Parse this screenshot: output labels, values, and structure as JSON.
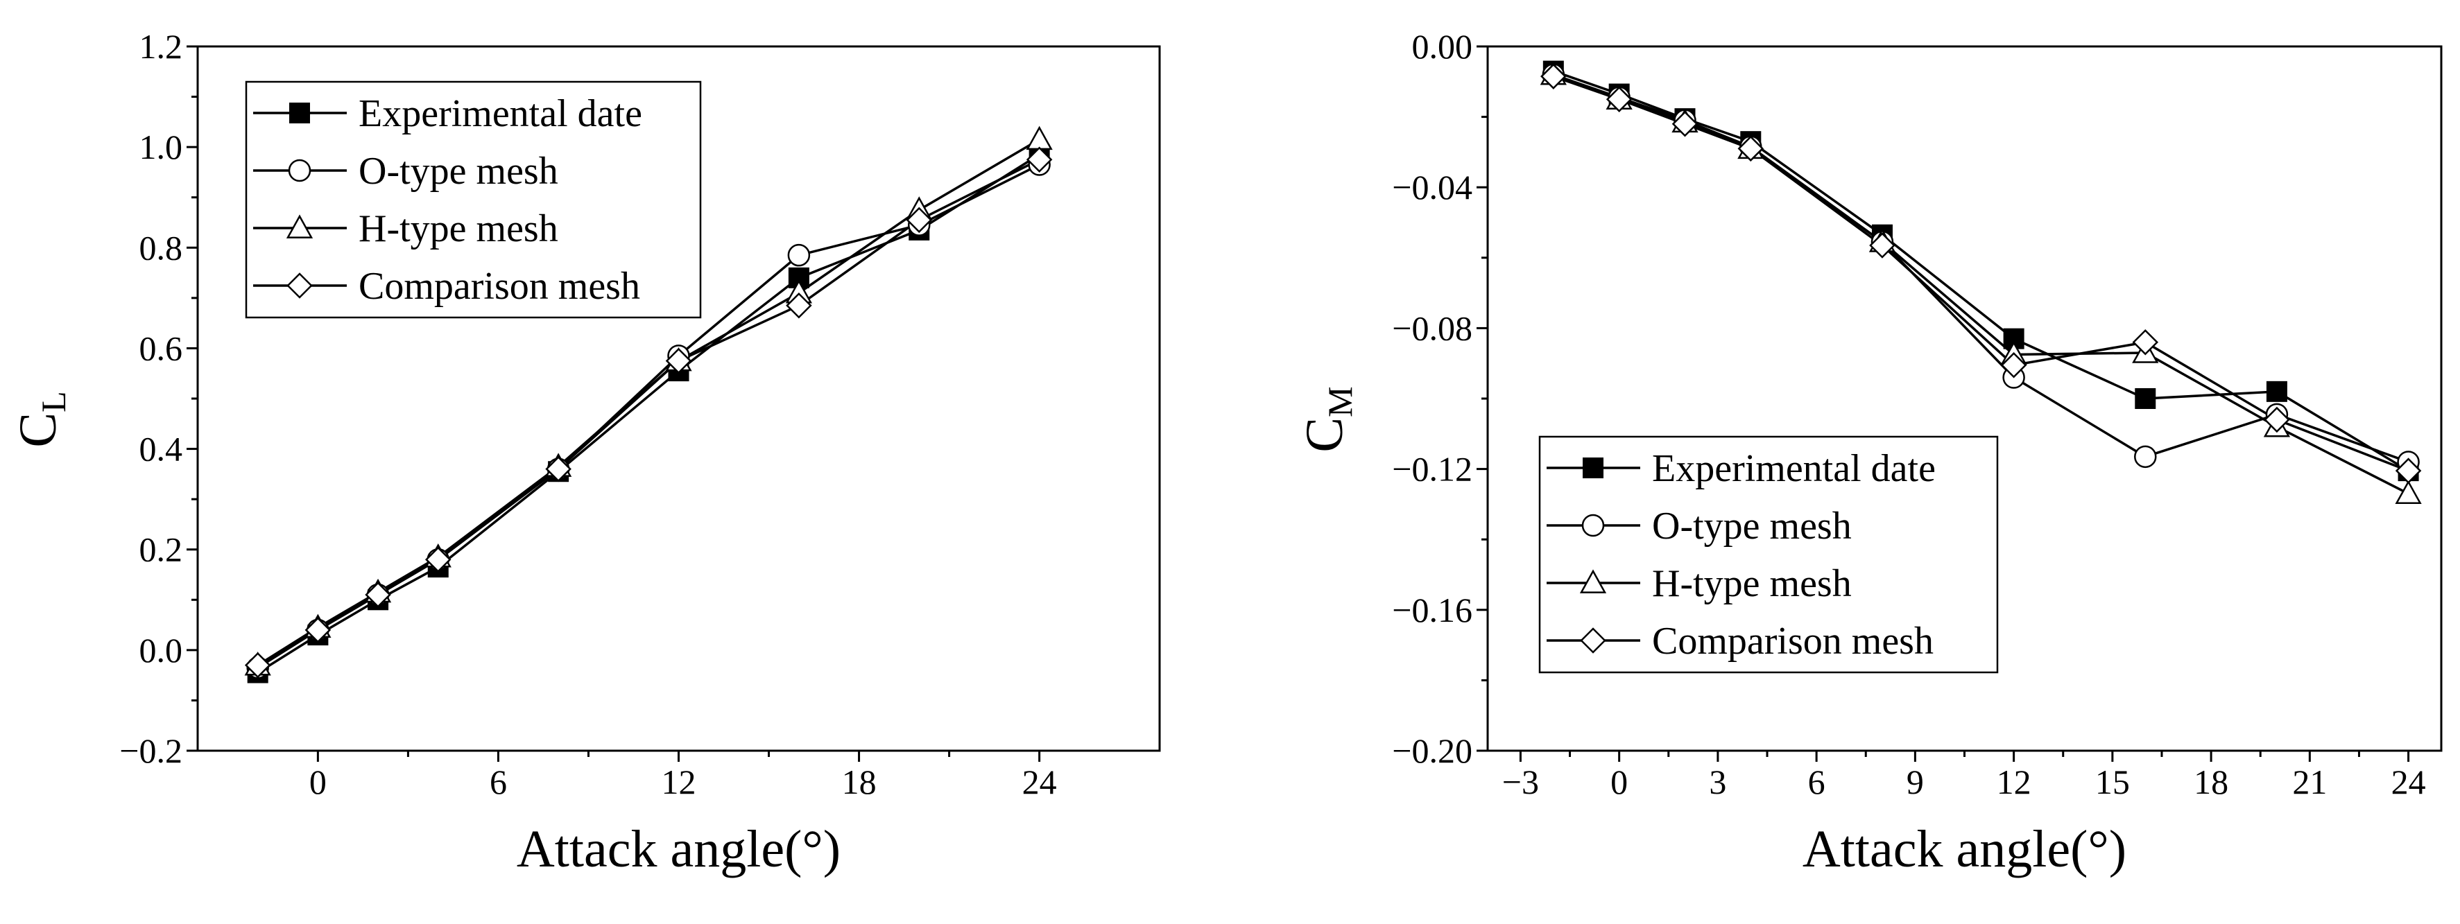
{
  "chart_data": [
    {
      "type": "line",
      "xlabel": "Attack angle(°)",
      "ylabel": "C",
      "ylabel_sub": "L",
      "xlim": [
        -4,
        28
      ],
      "ylim": [
        -0.2,
        1.2
      ],
      "xticks": [
        0,
        6,
        12,
        18,
        24
      ],
      "yticks": [
        -0.2,
        0.0,
        0.2,
        0.4,
        0.6,
        0.8,
        1.0,
        1.2
      ],
      "xtick_labels": [
        "0",
        "6",
        "12",
        "18",
        "24"
      ],
      "ytick_labels": [
        "−0.2",
        "0.0",
        "0.2",
        "0.4",
        "0.6",
        "0.8",
        "1.0",
        "1.2"
      ],
      "legend_position": "top-left",
      "x": [
        -2,
        0,
        2,
        4,
        8,
        12,
        16,
        20,
        24
      ],
      "series": [
        {
          "name": "Experimental date",
          "marker": "square-filled",
          "values": [
            -0.045,
            0.03,
            0.1,
            0.165,
            0.355,
            0.555,
            0.74,
            0.835,
            0.985
          ]
        },
        {
          "name": "O-type mesh",
          "marker": "circle-open",
          "values": [
            -0.035,
            0.04,
            0.11,
            0.18,
            0.36,
            0.585,
            0.785,
            0.845,
            0.965
          ]
        },
        {
          "name": "H-type mesh",
          "marker": "triangle-open",
          "values": [
            -0.03,
            0.045,
            0.115,
            0.185,
            0.365,
            0.575,
            0.71,
            0.875,
            1.015
          ]
        },
        {
          "name": "Comparison mesh",
          "marker": "diamond-open",
          "values": [
            -0.03,
            0.04,
            0.11,
            0.18,
            0.36,
            0.575,
            0.685,
            0.855,
            0.975
          ]
        }
      ]
    },
    {
      "type": "line",
      "xlabel": "Attack angle(°)",
      "ylabel": "C",
      "ylabel_sub": "M",
      "xlim": [
        -4,
        25
      ],
      "ylim": [
        -0.2,
        0.0
      ],
      "xticks": [
        -3,
        0,
        3,
        6,
        9,
        12,
        15,
        18,
        21,
        24
      ],
      "yticks": [
        0.0,
        -0.04,
        -0.08,
        -0.12,
        -0.16,
        -0.2
      ],
      "xtick_labels": [
        "−3",
        "0",
        "3",
        "6",
        "9",
        "12",
        "15",
        "18",
        "21",
        "24"
      ],
      "ytick_labels": [
        "0.00",
        "−0.04",
        "−0.08",
        "−0.12",
        "−0.16",
        "−0.20"
      ],
      "legend_position": "center-left",
      "x": [
        -2,
        0,
        2,
        4,
        8,
        12,
        16,
        20,
        24
      ],
      "series": [
        {
          "name": "Experimental date",
          "marker": "square-filled",
          "values": [
            -0.007,
            -0.0135,
            -0.0205,
            -0.027,
            -0.0535,
            -0.083,
            -0.1,
            -0.098,
            -0.1205
          ]
        },
        {
          "name": "O-type mesh",
          "marker": "circle-open",
          "values": [
            -0.008,
            -0.0145,
            -0.021,
            -0.0285,
            -0.0555,
            -0.094,
            -0.1165,
            -0.1045,
            -0.118
          ]
        },
        {
          "name": "H-type mesh",
          "marker": "triangle-open",
          "values": [
            -0.008,
            -0.015,
            -0.0215,
            -0.029,
            -0.0555,
            -0.0875,
            -0.087,
            -0.108,
            -0.127
          ]
        },
        {
          "name": "Comparison mesh",
          "marker": "diamond-open",
          "values": [
            -0.0085,
            -0.015,
            -0.022,
            -0.029,
            -0.0565,
            -0.0905,
            -0.084,
            -0.106,
            -0.1205
          ]
        }
      ]
    }
  ]
}
